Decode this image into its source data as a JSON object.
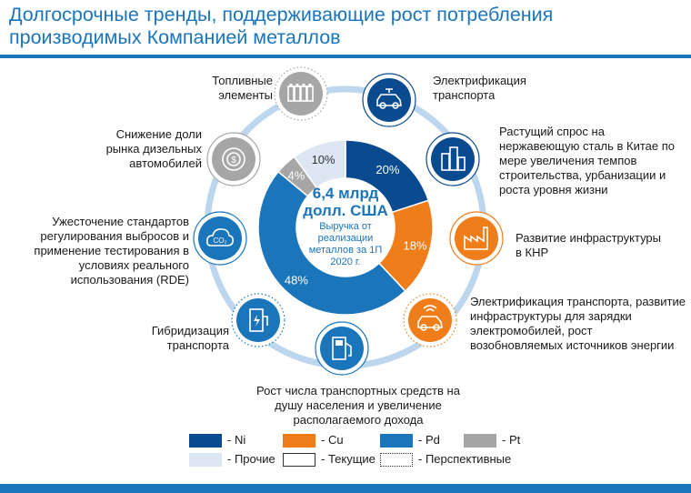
{
  "title": "Долгосрочные тренды, поддерживающие рост потребления производимых Компанией металлов",
  "center": {
    "amount": "6,4 млрд",
    "unit": "долл. США",
    "caption": "Выручка от реализации металлов за 1П 2020 г."
  },
  "chart_data": {
    "type": "pie",
    "donut": true,
    "categories": [
      "Ni",
      "Cu",
      "Pd",
      "Pt",
      "Прочие"
    ],
    "values": [
      20,
      18,
      48,
      4,
      10
    ],
    "labels": [
      "20%",
      "18%",
      "48%",
      "4%",
      "10%"
    ],
    "colors": [
      "#0a4a8f",
      "#ef7d1a",
      "#1b75bb",
      "#a6a6a6",
      "#dce7f3"
    ]
  },
  "trends": [
    {
      "id": "fuel-cells",
      "text": "Топливные элементы",
      "color": "#a6a6a6",
      "style": "prospective",
      "icon": "battery-icon"
    },
    {
      "id": "ev",
      "text": "Электрификация транспорта",
      "color": "#0a4a8f",
      "style": "current",
      "icon": "electric-car-icon"
    },
    {
      "id": "steel-china",
      "text": "Растущий спрос на нержавеющую сталь в Китае по мере увеличения темпов строительства, урбанизации и роста уровня жизни",
      "color": "#0a4a8f",
      "style": "current",
      "icon": "buildings-icon"
    },
    {
      "id": "infra-china",
      "text": "Развитие инфраструктуры в КНР",
      "color": "#ef7d1a",
      "style": "current",
      "icon": "factory-icon"
    },
    {
      "id": "ev-infra",
      "text": "Электрификация транспорта, развитие инфраструктуры для зарядки электромобилей, рост возобновляемых источников энергии",
      "color": "#ef7d1a",
      "style": "prospective",
      "icon": "connected-car-icon"
    },
    {
      "id": "vehicles-per-capita",
      "text": "Рост числа транспортных средств на душу населения и увеличение располагаемого дохода",
      "color": "#1b75bb",
      "style": "current",
      "icon": "fuel-pump-icon"
    },
    {
      "id": "hybrid",
      "text": "Гибридизация транспорта",
      "color": "#1b75bb",
      "style": "prospective",
      "icon": "charging-station-icon"
    },
    {
      "id": "emissions",
      "text": "Ужесточение стандартов регулирования выбросов и применение тестирования в условиях реального использования (RDE)",
      "color": "#1b75bb",
      "style": "current",
      "icon": "co2-cloud-icon"
    },
    {
      "id": "diesel",
      "text": "Снижение доли рынка дизельных автомобилей",
      "color": "#a6a6a6",
      "style": "current",
      "icon": "coin-icon"
    }
  ],
  "legend": [
    {
      "label": "- Ni",
      "color": "#0a4a8f",
      "kind": "fill"
    },
    {
      "label": "- Cu",
      "color": "#ef7d1a",
      "kind": "fill"
    },
    {
      "label": "- Pd",
      "color": "#1b75bb",
      "kind": "fill"
    },
    {
      "label": "- Pt",
      "color": "#a6a6a6",
      "kind": "fill"
    },
    {
      "label": "- Прочие",
      "color": "#dce7f3",
      "kind": "fill"
    },
    {
      "label": "- Текущие",
      "color": "#333333",
      "kind": "solid"
    },
    {
      "label": "- Перспективные",
      "color": "#333333",
      "kind": "dotted"
    }
  ]
}
